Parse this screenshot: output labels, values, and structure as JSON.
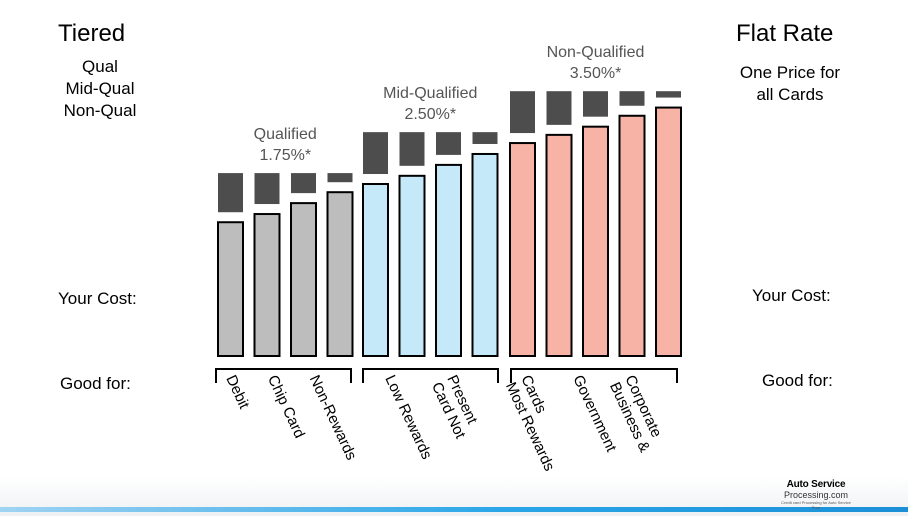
{
  "left": {
    "title": "Tiered",
    "list": [
      "Qual",
      "Mid-Qual",
      "Non-Qual"
    ],
    "your_cost": "Your Cost:",
    "good_for": "Good for:"
  },
  "right": {
    "title": "Flat Rate",
    "desc": [
      "One Price for",
      "all Cards"
    ],
    "your_cost": "Your Cost:",
    "good_for": "Good for:"
  },
  "logo": {
    "top": "Auto Service",
    "mid": "Processing.com",
    "bot": "Credit card Processing for Auto Service Pros"
  },
  "chart_data": {
    "type": "bar",
    "stacked": true,
    "ylim": [
      0,
      100
    ],
    "colors": {
      "qualified": "#bdbdbd",
      "mid": "#c6e9f9",
      "non": "#f6b3a6",
      "cap": "#4d4d4d"
    },
    "groups": [
      {
        "key": "qualified",
        "label_lines": [
          "Qualified",
          "1.75%*"
        ],
        "good_for": [
          "Debit",
          "Chip Card",
          "Non-Rewards"
        ],
        "bars": [
          {
            "cost": 49,
            "top": 67
          },
          {
            "cost": 52,
            "top": 67
          },
          {
            "cost": 56,
            "top": 67
          },
          {
            "cost": 60,
            "top": 67
          }
        ]
      },
      {
        "key": "mid",
        "label_lines": [
          "Mid-Qualified",
          "2.50%*"
        ],
        "good_for": [
          "Low Rewards",
          "Card Not Present"
        ],
        "bars": [
          {
            "cost": 63,
            "top": 82
          },
          {
            "cost": 66,
            "top": 82
          },
          {
            "cost": 70,
            "top": 82
          },
          {
            "cost": 74,
            "top": 82
          }
        ]
      },
      {
        "key": "non",
        "label_lines": [
          "Non-Qualified",
          "3.50%*"
        ],
        "good_for": [
          "Most Rewards Cards",
          "Government",
          "Business & Corporate"
        ],
        "bars": [
          {
            "cost": 78,
            "top": 97
          },
          {
            "cost": 81,
            "top": 97
          },
          {
            "cost": 84,
            "top": 97
          },
          {
            "cost": 88,
            "top": 97
          },
          {
            "cost": 91,
            "top": 97
          }
        ]
      }
    ]
  }
}
